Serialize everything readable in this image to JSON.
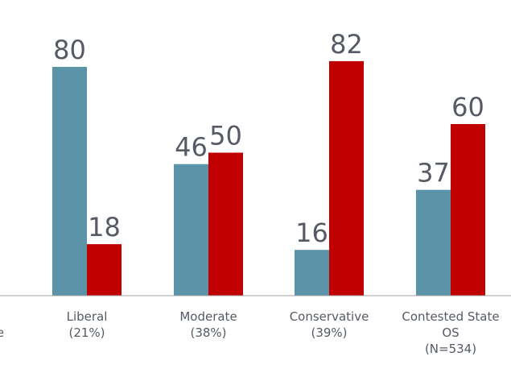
{
  "chart_data": {
    "type": "bar",
    "categories": [
      [
        "",
        "e"
      ],
      [
        "Liberal",
        "(21%)"
      ],
      [
        "Moderate",
        "(38%)"
      ],
      [
        "Conservative",
        "(39%)"
      ],
      [
        "Contested State",
        "OS",
        "(N=534)"
      ]
    ],
    "series": [
      {
        "values": [
          null,
          80,
          46,
          16,
          37
        ],
        "color": "#5b93a8"
      },
      {
        "values": [
          null,
          18,
          50,
          82,
          60
        ],
        "color": "#c00000"
      }
    ],
    "value_labels": [
      [
        null,
        "80",
        "46",
        "16",
        "37"
      ],
      [
        null,
        "18",
        "50",
        "82",
        "60"
      ]
    ],
    "ylim": [
      0,
      100
    ],
    "grid": false,
    "legend": "none",
    "axis_color": "#a0a0a0"
  }
}
